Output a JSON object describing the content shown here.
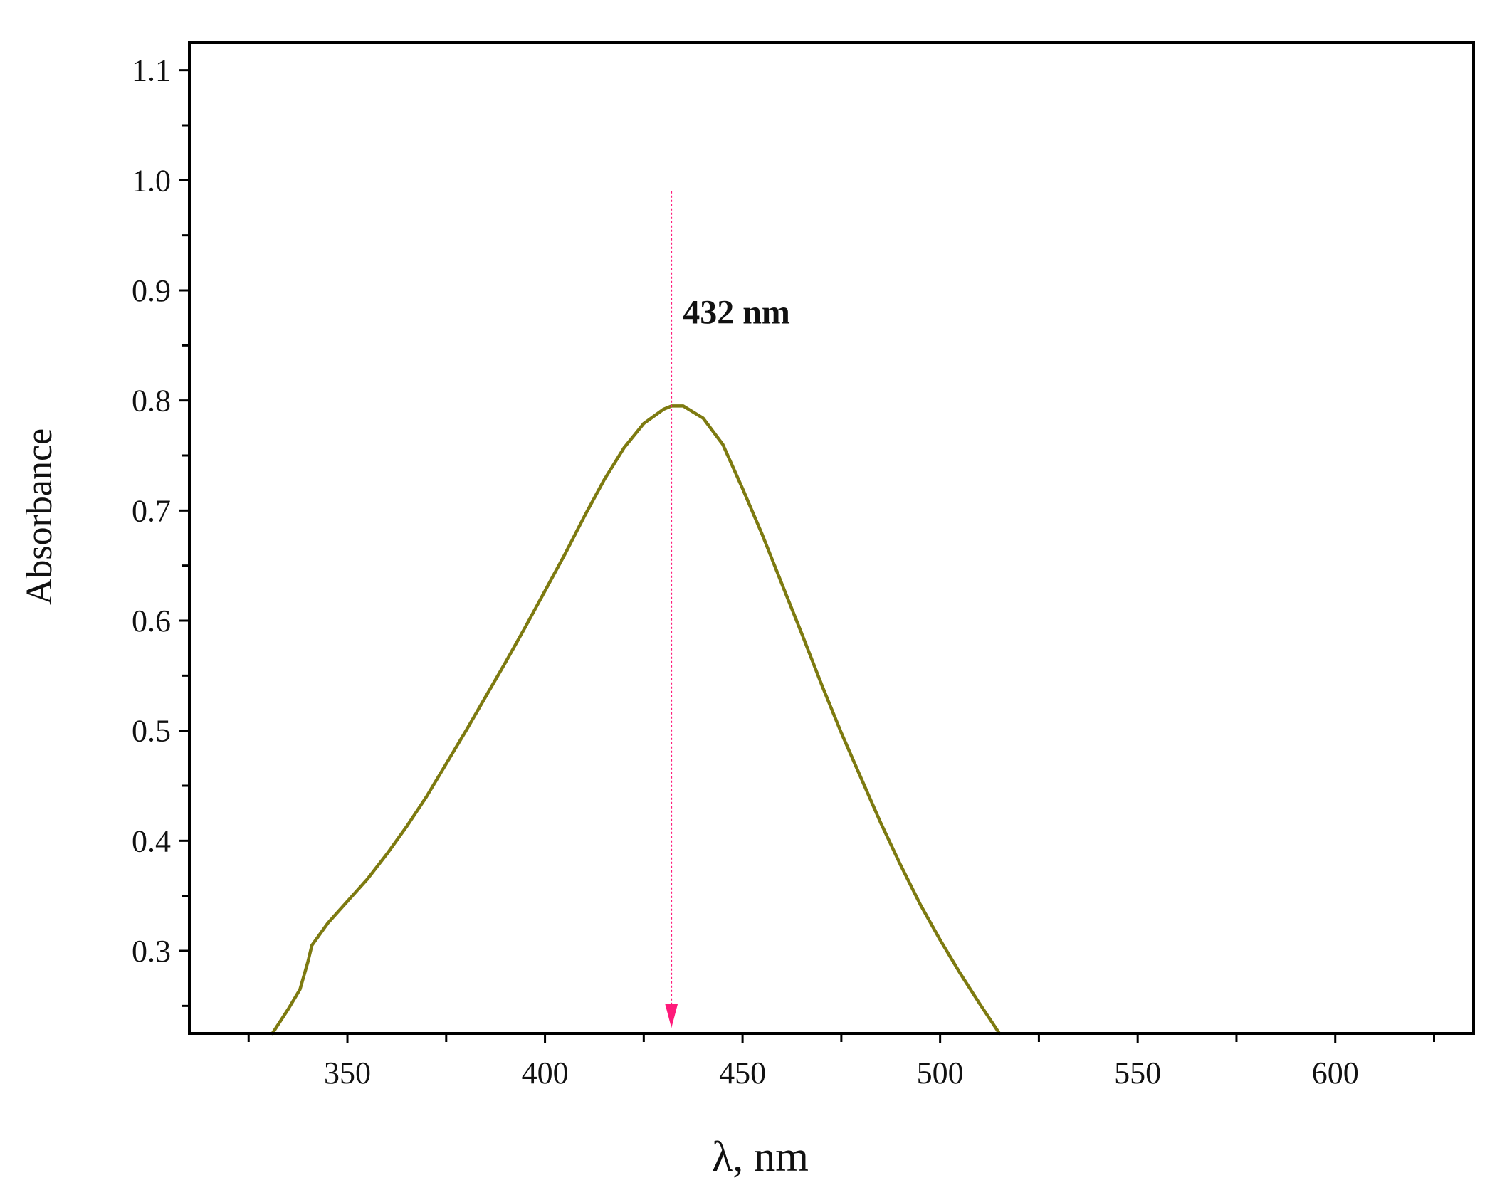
{
  "chart_data": {
    "type": "line",
    "title": "",
    "xlabel": "λ, nm",
    "ylabel": "Absorbance",
    "xlim": [
      310,
      635
    ],
    "ylim": [
      0.225,
      1.125
    ],
    "x_ticks": [
      350,
      400,
      450,
      500,
      550,
      600
    ],
    "y_ticks": [
      0.3,
      0.4,
      0.5,
      0.6,
      0.7,
      0.8,
      0.9,
      1.0,
      1.1
    ],
    "x_minor_ticks": [
      325,
      375,
      425,
      475,
      525,
      575,
      625
    ],
    "y_minor_ticks": [
      0.25,
      0.35,
      0.45,
      0.55,
      0.65,
      0.75,
      0.85,
      0.95,
      1.05
    ],
    "grid": false,
    "legend": "none",
    "series": [
      {
        "color": "#7d7a10",
        "points": [
          [
            331,
            0.225
          ],
          [
            335,
            0.247
          ],
          [
            338,
            0.265
          ],
          [
            340,
            0.29
          ],
          [
            341,
            0.305
          ],
          [
            345,
            0.325
          ],
          [
            350,
            0.345
          ],
          [
            355,
            0.365
          ],
          [
            360,
            0.388
          ],
          [
            365,
            0.413
          ],
          [
            370,
            0.44
          ],
          [
            375,
            0.47
          ],
          [
            380,
            0.5
          ],
          [
            385,
            0.531
          ],
          [
            390,
            0.562
          ],
          [
            395,
            0.594
          ],
          [
            400,
            0.627
          ],
          [
            405,
            0.66
          ],
          [
            410,
            0.695
          ],
          [
            415,
            0.728
          ],
          [
            420,
            0.757
          ],
          [
            425,
            0.779
          ],
          [
            430,
            0.792
          ],
          [
            432,
            0.795
          ],
          [
            435,
            0.795
          ],
          [
            440,
            0.784
          ],
          [
            445,
            0.76
          ],
          [
            450,
            0.72
          ],
          [
            455,
            0.678
          ],
          [
            460,
            0.633
          ],
          [
            465,
            0.588
          ],
          [
            470,
            0.542
          ],
          [
            475,
            0.498
          ],
          [
            480,
            0.457
          ],
          [
            485,
            0.416
          ],
          [
            490,
            0.378
          ],
          [
            495,
            0.342
          ],
          [
            500,
            0.31
          ],
          [
            505,
            0.28
          ],
          [
            510,
            0.252
          ],
          [
            515,
            0.225
          ]
        ]
      }
    ],
    "annotations": [
      {
        "text": "432 nm",
        "x": 432,
        "arrow_color": "#ff1a7a",
        "arrow_from_y": 0.99,
        "arrow_to_y": 0.23
      }
    ]
  }
}
